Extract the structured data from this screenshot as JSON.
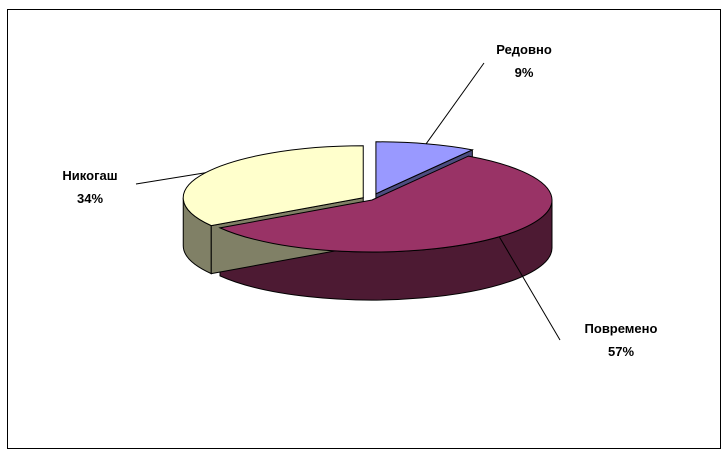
{
  "chart_data": {
    "type": "pie",
    "style": "3d-exploded",
    "legend": "none",
    "slices": [
      {
        "label": "Редовно",
        "value": 9,
        "value_label": "9%",
        "color": "#9999ff",
        "side_color": "#4d4d80"
      },
      {
        "label": "Повремено",
        "value": 57,
        "value_label": "57%",
        "color": "#993366",
        "side_color": "#4d1a33"
      },
      {
        "label": "Никогаш",
        "value": 34,
        "value_label": "34%",
        "color": "#ffffcc",
        "side_color": "#808066"
      }
    ]
  }
}
